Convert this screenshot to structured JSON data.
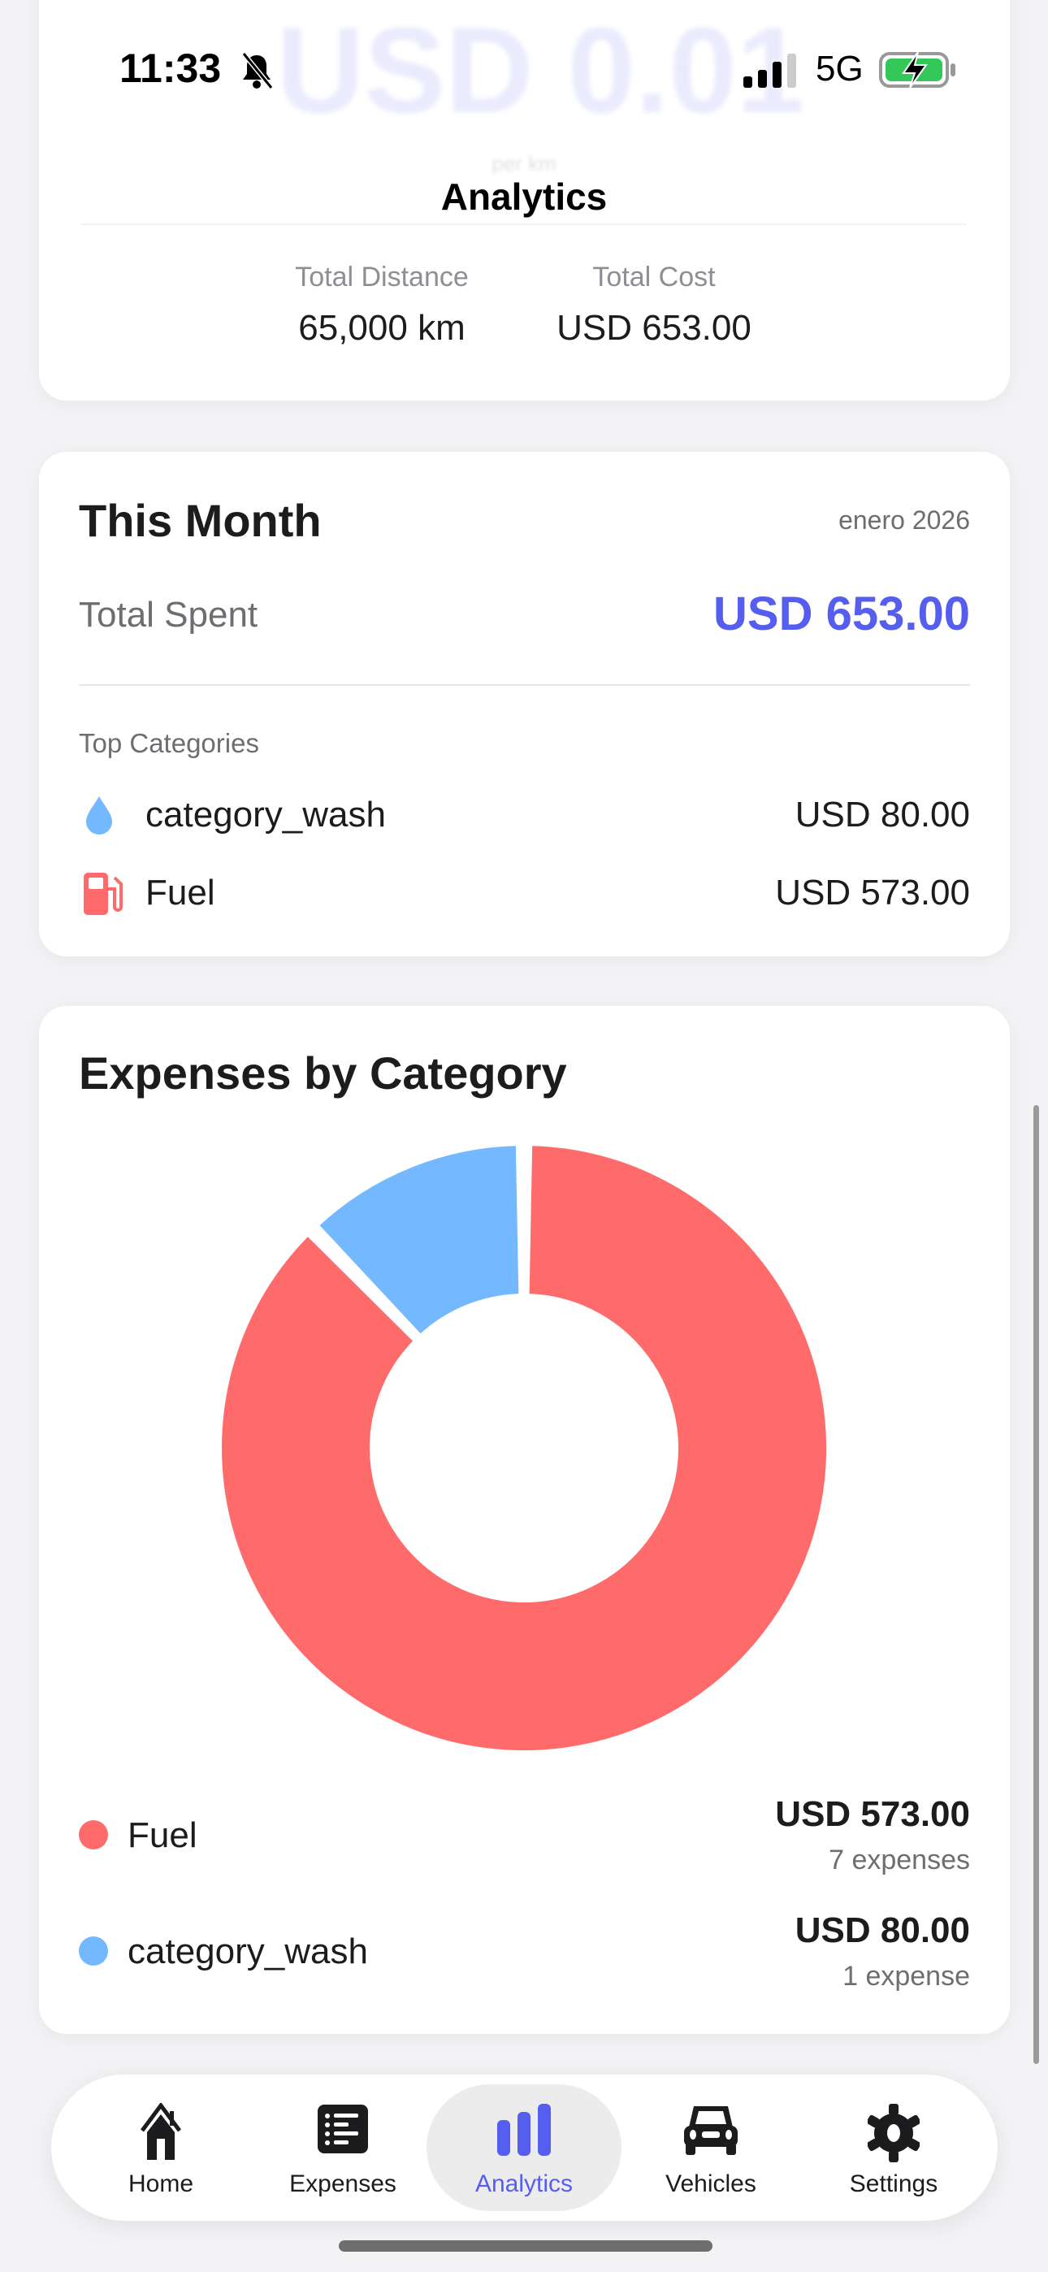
{
  "status_bar": {
    "time": "11:33",
    "network": "5G",
    "icons": [
      "bell-slash-icon",
      "signal-icon",
      "battery-charging-icon"
    ]
  },
  "background_ghost": {
    "value": "USD 0.01",
    "unit": "per km"
  },
  "nav": {
    "title": "Analytics"
  },
  "summary": {
    "items": [
      {
        "label": "Total Distance",
        "value": "65,000 km"
      },
      {
        "label": "Total Cost",
        "value": "USD 653.00"
      }
    ]
  },
  "this_month": {
    "title": "This Month",
    "period": "enero 2026",
    "total_label": "Total Spent",
    "total_value": "USD 653.00",
    "top_label": "Top Categories",
    "categories": [
      {
        "name": "category_wash",
        "amount": "USD 80.00",
        "icon": "drop-icon"
      },
      {
        "name": "Fuel",
        "amount": "USD 573.00",
        "icon": "fuel-pump-icon"
      }
    ]
  },
  "expenses_by_category": {
    "title": "Expenses by Category",
    "legend": [
      {
        "name": "Fuel",
        "amount": "USD 573.00",
        "count": "7 expenses",
        "color": "#ff6b6b"
      },
      {
        "name": "category_wash",
        "amount": "USD 80.00",
        "count": "1 expense",
        "color": "#74b9ff"
      }
    ]
  },
  "chart_data": {
    "type": "pie",
    "donut": true,
    "categories": [
      "Fuel",
      "category_wash"
    ],
    "values": [
      573,
      80
    ],
    "colors": [
      "#ff6b6b",
      "#74b9ff"
    ],
    "title": "Expenses by Category",
    "legend": "bottom"
  },
  "tabbar": {
    "active": "Analytics",
    "accent": "#565ef0",
    "items": [
      {
        "label": "Home",
        "icon": "house-icon"
      },
      {
        "label": "Expenses",
        "icon": "list-icon"
      },
      {
        "label": "Analytics",
        "icon": "bar-chart-icon"
      },
      {
        "label": "Vehicles",
        "icon": "car-icon"
      },
      {
        "label": "Settings",
        "icon": "gear-icon"
      }
    ]
  }
}
